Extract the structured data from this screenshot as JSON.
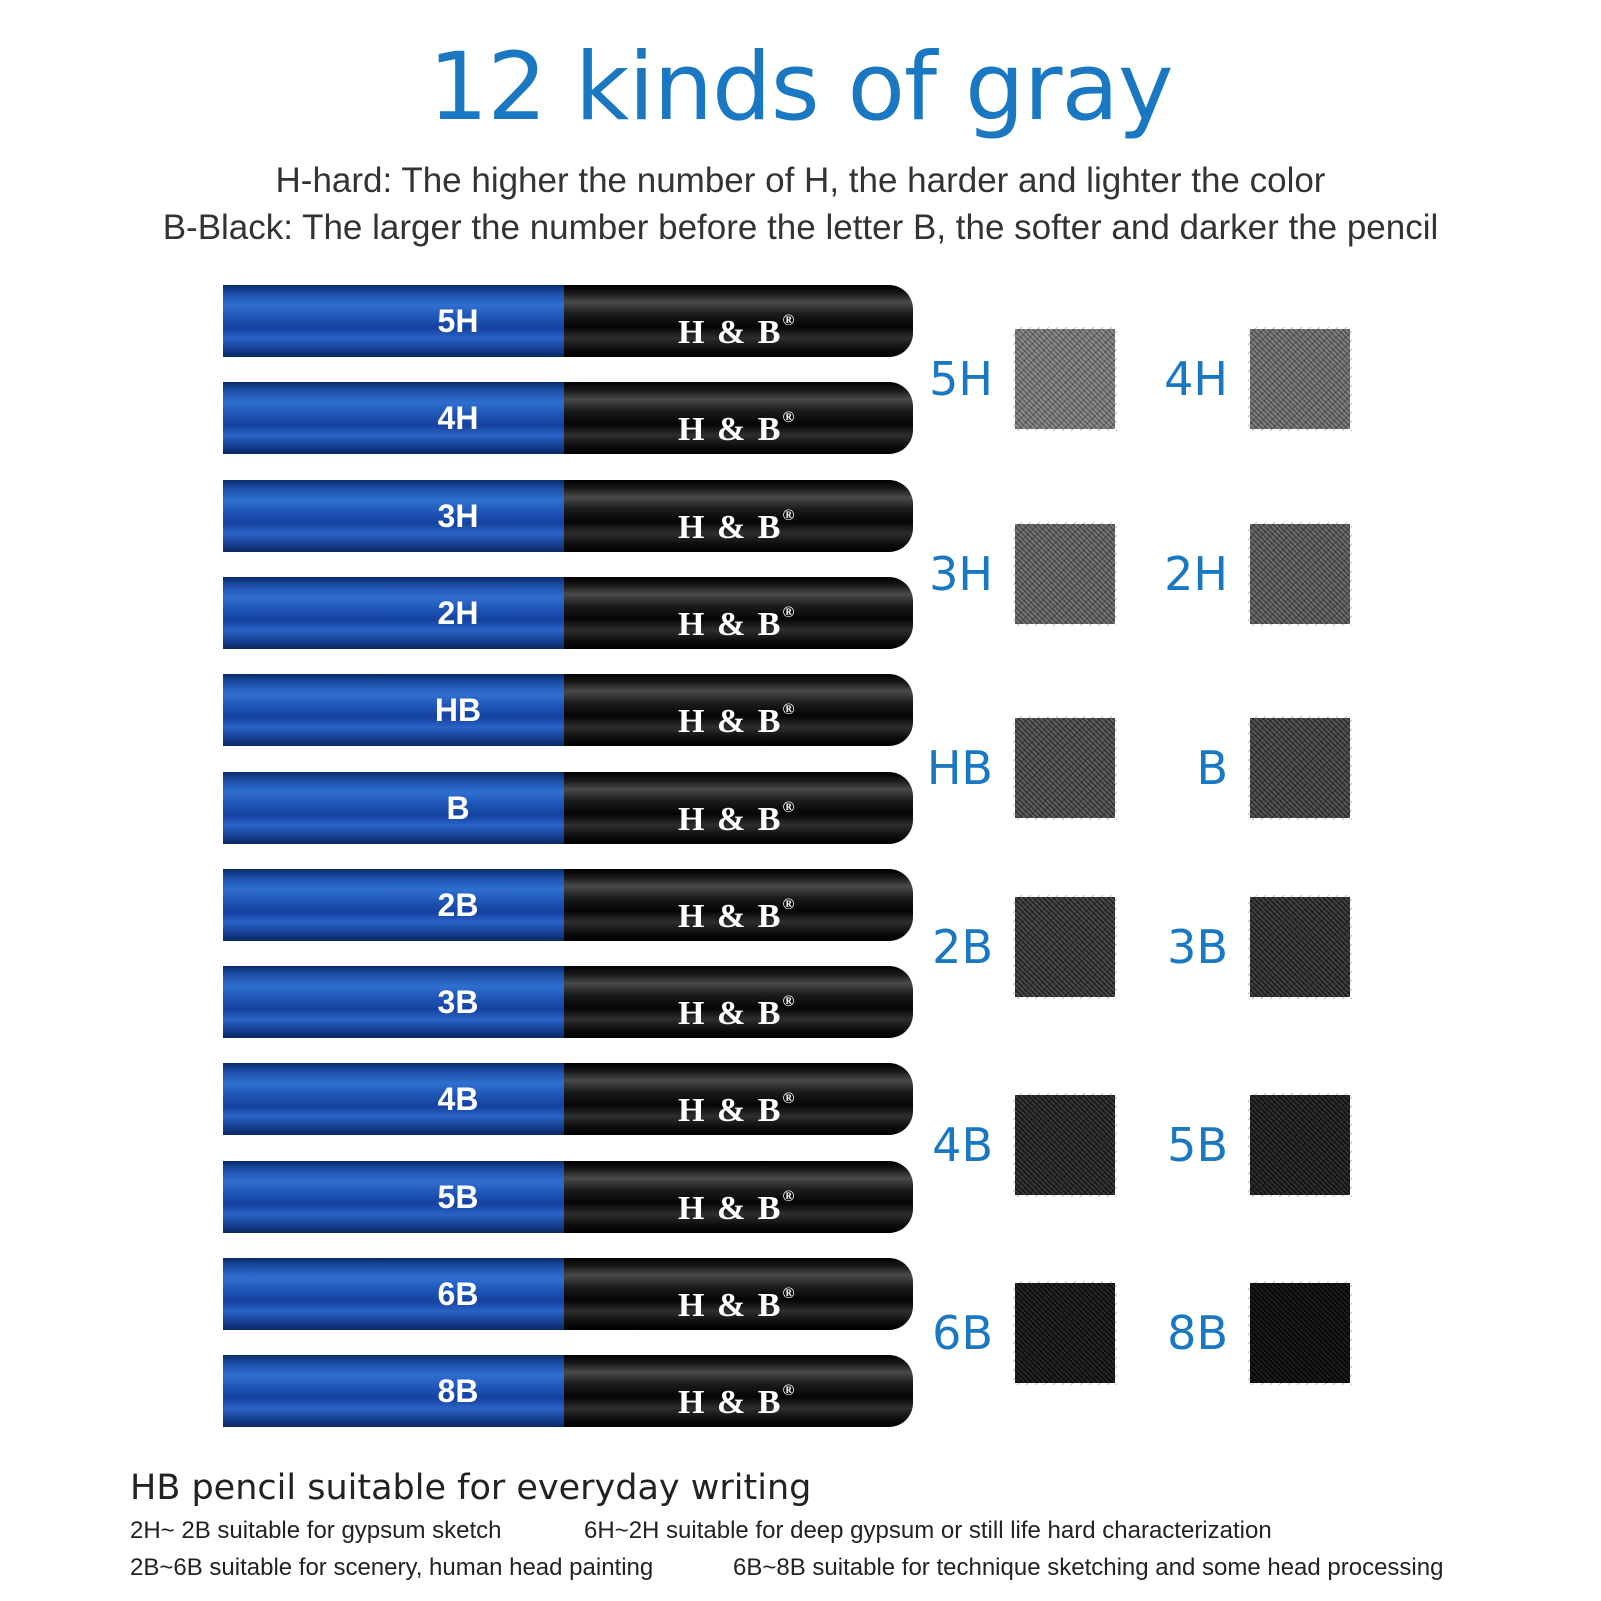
{
  "title": "12 kinds of gray",
  "subtitle_lines": [
    "H-hard: The higher the number of H, the harder and lighter the color",
    "B-Black: The larger the number before the letter B, the softer and darker the pencil"
  ],
  "pencil_brand": "H & B",
  "pencil_brand_mark": "®",
  "pencils": [
    "5H",
    "4H",
    "3H",
    "2H",
    "HB",
    "B",
    "2B",
    "3B",
    "4B",
    "5B",
    "6B",
    "8B"
  ],
  "swatches": [
    {
      "label": "5H",
      "shade": "#6a6a6a"
    },
    {
      "label": "4H",
      "shade": "#5e5e5e"
    },
    {
      "label": "3H",
      "shade": "#545454"
    },
    {
      "label": "2H",
      "shade": "#4c4c4c"
    },
    {
      "label": "HB",
      "shade": "#3e3e3e"
    },
    {
      "label": "B",
      "shade": "#363636"
    },
    {
      "label": "2B",
      "shade": "#2c2c2c"
    },
    {
      "label": "3B",
      "shade": "#262626"
    },
    {
      "label": "4B",
      "shade": "#1e1e1e"
    },
    {
      "label": "5B",
      "shade": "#181818"
    },
    {
      "label": "6B",
      "shade": "#111111"
    },
    {
      "label": "8B",
      "shade": "#0a0a0a"
    }
  ],
  "footer": {
    "main": "HB pencil  suitable for everyday writing",
    "notes": [
      "2H~ 2B suitable for gypsum sketch",
      "6H~2H suitable for deep gypsum or still life hard characterization",
      "2B~6B suitable for scenery, human head painting",
      "6B~8B suitable for technique sketching and some head processing"
    ]
  },
  "colors": {
    "accent_blue": "#1a78c2",
    "pencil_body_blue": "#1f55b5",
    "pencil_tip_black": "#000000",
    "text_dark": "#333333"
  }
}
